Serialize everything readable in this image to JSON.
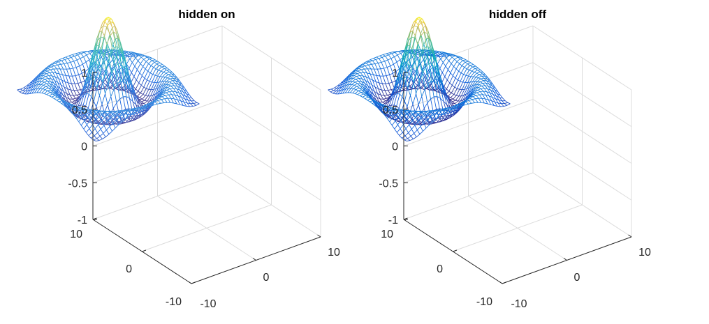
{
  "chart_data": [
    {
      "type": "mesh",
      "title": "hidden on",
      "hidden": "on",
      "function": "z = sin(r)/r, r = sqrt(x^2 + y^2) + eps",
      "x_range": [
        -8,
        8
      ],
      "y_range": [
        -8,
        8
      ],
      "grid_step": 0.5,
      "colormap": "parula",
      "xlim": [
        -10,
        10
      ],
      "ylim": [
        -10,
        10
      ],
      "zlim": [
        -1,
        1
      ],
      "x_ticks": [
        "-10",
        "0",
        "10"
      ],
      "y_ticks": [
        "-10",
        "0",
        "10"
      ],
      "z_ticks": [
        "-1",
        "-0.5",
        "0",
        "0.5",
        "1"
      ],
      "xlabel": "",
      "ylabel": "",
      "zlabel": "",
      "view": {
        "azimuth": -37.5,
        "elevation": 30
      },
      "grid": true
    },
    {
      "type": "mesh",
      "title": "hidden off",
      "hidden": "off",
      "function": "z = sin(r)/r, r = sqrt(x^2 + y^2) + eps",
      "x_range": [
        -8,
        8
      ],
      "y_range": [
        -8,
        8
      ],
      "grid_step": 0.5,
      "colormap": "parula",
      "xlim": [
        -10,
        10
      ],
      "ylim": [
        -10,
        10
      ],
      "zlim": [
        -1,
        1
      ],
      "x_ticks": [
        "-10",
        "0",
        "10"
      ],
      "y_ticks": [
        "-10",
        "0",
        "10"
      ],
      "z_ticks": [
        "-1",
        "-0.5",
        "0",
        "0.5",
        "1"
      ],
      "xlabel": "",
      "ylabel": "",
      "zlabel": "",
      "view": {
        "azimuth": -37.5,
        "elevation": 30
      },
      "grid": true
    }
  ]
}
